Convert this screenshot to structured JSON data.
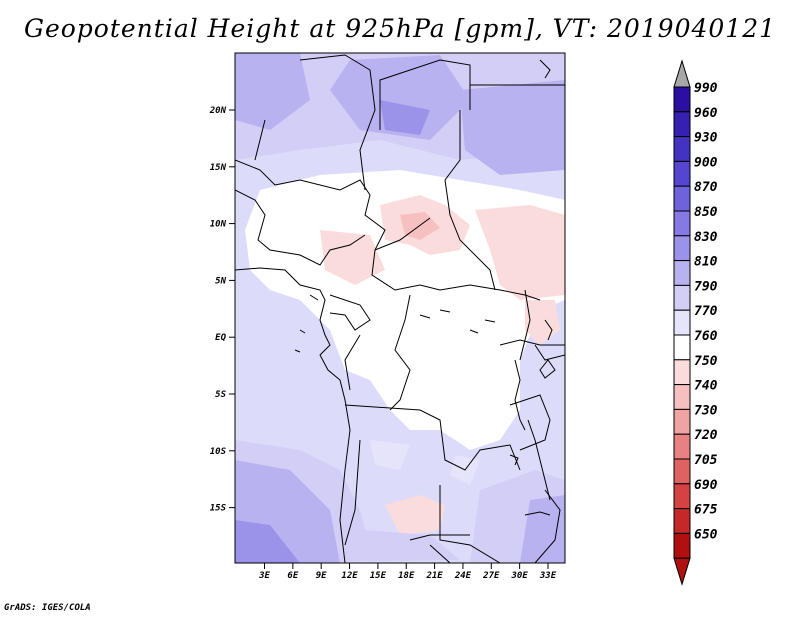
{
  "title": "Geopotential Height at 925hPa [gpm], VT: 2019040121",
  "credit": "GrADS: IGES/COLA",
  "colorbar": {
    "levels": [
      "990",
      "960",
      "930",
      "900",
      "870",
      "850",
      "830",
      "810",
      "790",
      "770",
      "760",
      "750",
      "740",
      "730",
      "720",
      "705",
      "690",
      "675",
      "650"
    ],
    "colors": [
      "#2a0fa0",
      "#3520b0",
      "#4433c0",
      "#5545cf",
      "#6e63dc",
      "#8679e3",
      "#9b93ea",
      "#b9b2f0",
      "#d2cef6",
      "#e5e4fb",
      "#ffffff",
      "#fbdcdc",
      "#f6c0c0",
      "#f0a3a3",
      "#e88282",
      "#df6262",
      "#d44343",
      "#c52828",
      "#b01010"
    ],
    "over_color": "#a8a8a8",
    "under_color": "#b01010"
  },
  "map": {
    "lat_labels": [
      "20N",
      "15N",
      "10N",
      "5N",
      "EQ",
      "5S",
      "10S",
      "15S"
    ],
    "lon_labels": [
      "3E",
      "6E",
      "9E",
      "12E",
      "15E",
      "18E",
      "21E",
      "24E",
      "27E",
      "30E",
      "33E"
    ]
  }
}
